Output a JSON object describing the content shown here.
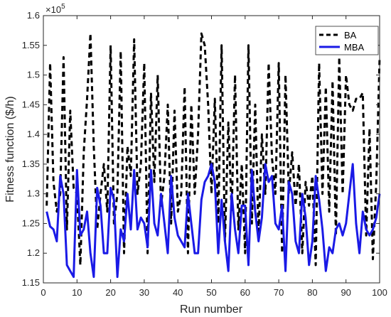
{
  "chart_data": {
    "type": "line",
    "xlabel": "Run number",
    "ylabel": "Fitness function ($/h)",
    "y_multiplier": "×10",
    "y_exponent": "5",
    "xlim": [
      0,
      100
    ],
    "ylim": [
      1.15,
      1.6
    ],
    "xticks": [
      0,
      10,
      20,
      30,
      40,
      50,
      60,
      70,
      80,
      90,
      100
    ],
    "yticks": [
      1.15,
      1.2,
      1.25,
      1.3,
      1.35,
      1.4,
      1.45,
      1.5,
      1.55,
      1.6
    ],
    "grid": false,
    "legend_position": "top-right",
    "x": [
      1,
      2,
      3,
      4,
      5,
      6,
      7,
      8,
      9,
      10,
      11,
      12,
      13,
      14,
      15,
      16,
      17,
      18,
      19,
      20,
      21,
      22,
      23,
      24,
      25,
      26,
      27,
      28,
      29,
      30,
      31,
      32,
      33,
      34,
      35,
      36,
      37,
      38,
      39,
      40,
      41,
      42,
      43,
      44,
      45,
      46,
      47,
      48,
      49,
      50,
      51,
      52,
      53,
      54,
      55,
      56,
      57,
      58,
      59,
      60,
      61,
      62,
      63,
      64,
      65,
      66,
      67,
      68,
      69,
      70,
      71,
      72,
      73,
      74,
      75,
      76,
      77,
      78,
      79,
      80,
      81,
      82,
      83,
      84,
      85,
      86,
      87,
      88,
      89,
      90,
      91,
      92,
      93,
      94,
      95,
      96,
      97,
      98,
      99,
      100
    ],
    "series": [
      {
        "name": "BA",
        "color": "#000000",
        "style": "dashed",
        "values": [
          1.28,
          1.52,
          1.32,
          1.27,
          1.3,
          1.53,
          1.24,
          1.44,
          1.31,
          1.3,
          1.18,
          1.37,
          1.46,
          1.57,
          1.38,
          1.24,
          1.3,
          1.35,
          1.27,
          1.55,
          1.25,
          1.3,
          1.54,
          1.2,
          1.38,
          1.33,
          1.56,
          1.3,
          1.35,
          1.52,
          1.2,
          1.47,
          1.32,
          1.5,
          1.28,
          1.33,
          1.45,
          1.25,
          1.44,
          1.27,
          1.3,
          1.48,
          1.2,
          1.45,
          1.3,
          1.4,
          1.57,
          1.55,
          1.45,
          1.3,
          1.46,
          1.25,
          1.55,
          1.22,
          1.42,
          1.27,
          1.5,
          1.24,
          1.35,
          1.2,
          1.55,
          1.25,
          1.45,
          1.23,
          1.4,
          1.3,
          1.52,
          1.36,
          1.3,
          1.52,
          1.2,
          1.5,
          1.3,
          1.37,
          1.28,
          1.35,
          1.2,
          1.32,
          1.28,
          1.33,
          1.18,
          1.52,
          1.3,
          1.48,
          1.27,
          1.49,
          1.23,
          1.53,
          1.3,
          1.5,
          1.45,
          1.44,
          1.46,
          1.46,
          1.47,
          1.23,
          1.41,
          1.19,
          1.32,
          1.53
        ]
      },
      {
        "name": "MBA",
        "color": "#1a1ae6",
        "style": "solid",
        "values": [
          1.27,
          1.245,
          1.24,
          1.22,
          1.33,
          1.3,
          1.18,
          1.17,
          1.16,
          1.34,
          1.23,
          1.24,
          1.27,
          1.2,
          1.16,
          1.31,
          1.28,
          1.2,
          1.2,
          1.31,
          1.29,
          1.16,
          1.24,
          1.22,
          1.3,
          1.24,
          1.34,
          1.24,
          1.26,
          1.25,
          1.21,
          1.34,
          1.25,
          1.23,
          1.3,
          1.25,
          1.2,
          1.33,
          1.26,
          1.23,
          1.22,
          1.21,
          1.3,
          1.25,
          1.2,
          1.2,
          1.29,
          1.32,
          1.33,
          1.35,
          1.32,
          1.2,
          1.29,
          1.22,
          1.17,
          1.3,
          1.24,
          1.2,
          1.28,
          1.28,
          1.18,
          1.34,
          1.27,
          1.22,
          1.26,
          1.35,
          1.32,
          1.33,
          1.25,
          1.24,
          1.28,
          1.17,
          1.32,
          1.3,
          1.22,
          1.2,
          1.3,
          1.26,
          1.18,
          1.22,
          1.33,
          1.29,
          1.24,
          1.17,
          1.21,
          1.2,
          1.24,
          1.25,
          1.23,
          1.25,
          1.3,
          1.35,
          1.25,
          1.2,
          1.27,
          1.24,
          1.23,
          1.24,
          1.26,
          1.3
        ]
      }
    ]
  }
}
